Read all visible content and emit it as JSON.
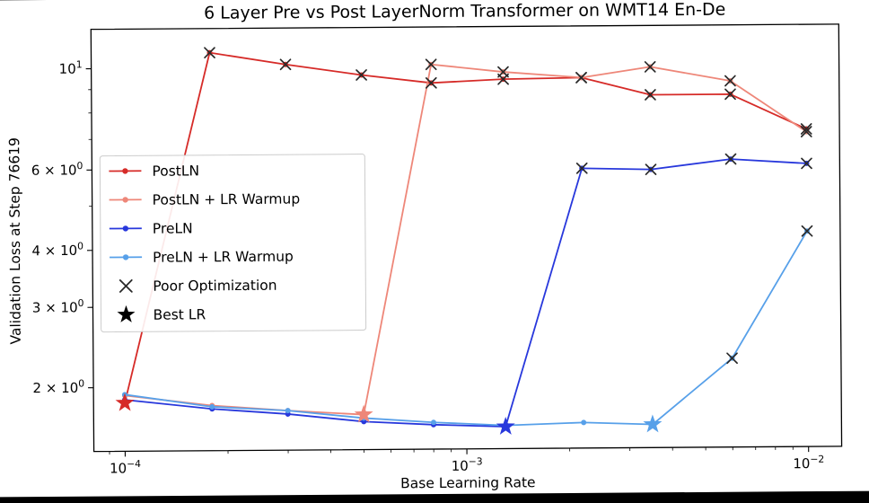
{
  "figure": {
    "page_background": "#000000",
    "plot_background": "#ffffff"
  },
  "chart_data": {
    "type": "line",
    "title": "6 Layer Pre vs Post LayerNorm Transformer on WMT14 En-De",
    "xlabel": "Base Learning Rate",
    "ylabel": "Validation Loss at Step 76619",
    "xscale": "log",
    "yscale": "log",
    "grid": false,
    "legend_position": "center left",
    "xlim": [
      8.1e-05,
      0.0125
    ],
    "ylim": [
      1.45,
      12.2
    ],
    "x": [
      0.0001,
      0.00018,
      0.0003,
      0.0005,
      0.0008,
      0.0013,
      0.0022,
      0.0035,
      0.006,
      0.01
    ],
    "series": [
      {
        "name": "PostLN",
        "color": "#d62b28",
        "values": [
          1.85,
          10.8,
          10.15,
          9.6,
          9.2,
          9.35,
          9.4,
          8.6,
          8.6,
          7.2
        ],
        "poor_optimization": [
          1,
          2,
          3,
          4,
          5,
          6,
          7,
          8,
          9
        ],
        "best_lr_index": 0
      },
      {
        "name": "PostLN + LR Warmup",
        "color": "#ee8779",
        "values": [
          1.92,
          1.82,
          1.77,
          1.73,
          10.1,
          9.7,
          9.4,
          9.9,
          9.2,
          7.1
        ],
        "poor_optimization": [
          4,
          5,
          6,
          7,
          8,
          9
        ],
        "best_lr_index": 3
      },
      {
        "name": "PreLN",
        "color": "#2838dc",
        "values": [
          1.88,
          1.79,
          1.74,
          1.67,
          1.64,
          1.62,
          5.95,
          5.9,
          6.2,
          6.05
        ],
        "poor_optimization": [
          6,
          7,
          8,
          9
        ],
        "best_lr_index": 5
      },
      {
        "name": "PreLN + LR Warmup",
        "color": "#57a0e9",
        "values": [
          1.93,
          1.81,
          1.77,
          1.7,
          1.66,
          1.63,
          1.65,
          1.63,
          2.27,
          4.3
        ],
        "poor_optimization": [
          8,
          9
        ],
        "best_lr_index": 7
      }
    ],
    "marker_legend": [
      {
        "label": "Poor Optimization",
        "marker": "x",
        "color": "#2a2a2a"
      },
      {
        "label": "Best LR",
        "marker": "star",
        "color": "#000000"
      }
    ],
    "xticks": [
      {
        "value": 0.0001,
        "mantissa": "",
        "exponent": "−4"
      },
      {
        "value": 0.001,
        "mantissa": "",
        "exponent": "−3"
      },
      {
        "value": 0.01,
        "mantissa": "",
        "exponent": "−2"
      }
    ],
    "yticks": [
      {
        "value": 10,
        "mantissa": "",
        "exponent": "1"
      },
      {
        "value": 6,
        "mantissa": "6 × ",
        "exponent": "0"
      },
      {
        "value": 4,
        "mantissa": "4 × ",
        "exponent": "0"
      },
      {
        "value": 3,
        "mantissa": "3 × ",
        "exponent": "0"
      },
      {
        "value": 2,
        "mantissa": "2 × ",
        "exponent": "0"
      }
    ],
    "y_minor_ticks": [
      5,
      7,
      8,
      9
    ]
  }
}
